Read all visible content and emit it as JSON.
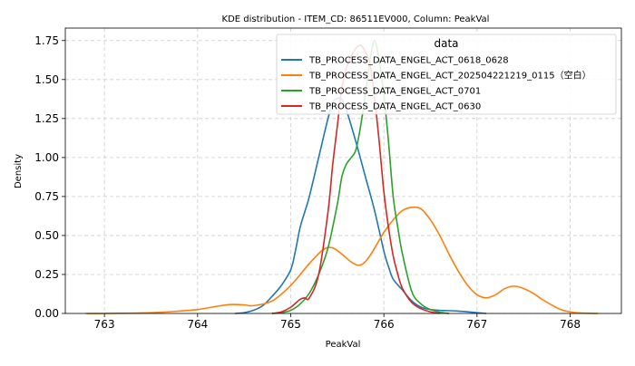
{
  "chart_data": {
    "type": "line",
    "title": "KDE distribution - ITEM_CD: 86511EV000, Column: PeakVal",
    "xlabel": "PeakVal",
    "ylabel": "Density",
    "xlim": [
      762.58,
      768.55
    ],
    "ylim": [
      0,
      1.83
    ],
    "xticks": [
      763,
      764,
      765,
      766,
      767,
      768
    ],
    "yticks": [
      0.0,
      0.25,
      0.5,
      0.75,
      1.0,
      1.25,
      1.5,
      1.75
    ],
    "ytick_labels": [
      "0.00",
      "0.25",
      "0.50",
      "0.75",
      "1.00",
      "1.25",
      "1.50",
      "1.75"
    ],
    "grid": true,
    "legend": {
      "title": "data",
      "placement": "top-right"
    },
    "series": [
      {
        "name": "TB_PROCESS_DATA_ENGEL_ACT_0618_0628",
        "color": "#1f77b4",
        "x": [
          764.4,
          764.5,
          764.6,
          764.7,
          764.8,
          764.9,
          765.0,
          765.05,
          765.1,
          765.15,
          765.2,
          765.3,
          765.4,
          765.45,
          765.5,
          765.55,
          765.6,
          765.7,
          765.8,
          765.9,
          766.0,
          766.05,
          766.1,
          766.2,
          766.3,
          766.4,
          766.5,
          766.6,
          766.8,
          767.0,
          767.1
        ],
        "y": [
          0.0,
          0.005,
          0.02,
          0.05,
          0.11,
          0.18,
          0.28,
          0.4,
          0.55,
          0.65,
          0.75,
          1.0,
          1.25,
          1.35,
          1.38,
          1.37,
          1.3,
          1.1,
          0.88,
          0.66,
          0.4,
          0.3,
          0.22,
          0.15,
          0.08,
          0.04,
          0.025,
          0.02,
          0.015,
          0.005,
          0.0
        ]
      },
      {
        "name": "TB_PROCESS_DATA_ENGEL_ACT_202504221219_0115（空白）",
        "color": "#ff7f0e",
        "x": [
          762.8,
          763.0,
          763.5,
          763.8,
          764.0,
          764.2,
          764.35,
          764.5,
          764.6,
          764.8,
          765.0,
          765.2,
          765.35,
          765.45,
          765.55,
          765.65,
          765.75,
          765.85,
          766.0,
          766.1,
          766.2,
          766.3,
          766.4,
          766.5,
          766.6,
          766.7,
          766.8,
          766.9,
          767.0,
          767.1,
          767.2,
          767.3,
          767.4,
          767.5,
          767.6,
          767.7,
          767.8,
          767.9,
          768.0,
          768.1,
          768.3
        ],
        "y": [
          0.0,
          0.0,
          0.005,
          0.015,
          0.025,
          0.045,
          0.057,
          0.055,
          0.05,
          0.08,
          0.18,
          0.32,
          0.41,
          0.42,
          0.38,
          0.33,
          0.31,
          0.37,
          0.52,
          0.6,
          0.66,
          0.68,
          0.67,
          0.6,
          0.5,
          0.38,
          0.27,
          0.18,
          0.12,
          0.1,
          0.12,
          0.16,
          0.175,
          0.16,
          0.13,
          0.09,
          0.055,
          0.025,
          0.01,
          0.003,
          0.0
        ]
      },
      {
        "name": "TB_PROCESS_DATA_ENGEL_ACT_0701",
        "color": "#2ca02c",
        "x": [
          764.8,
          764.9,
          765.0,
          765.1,
          765.2,
          765.3,
          765.4,
          765.5,
          765.55,
          765.6,
          765.65,
          765.7,
          765.75,
          765.8,
          765.85,
          765.9,
          765.95,
          766.0,
          766.05,
          766.1,
          766.15,
          766.2,
          766.3,
          766.4,
          766.5,
          766.6,
          766.7
        ],
        "y": [
          0.0,
          0.005,
          0.02,
          0.06,
          0.13,
          0.25,
          0.42,
          0.7,
          0.88,
          0.96,
          1.0,
          1.05,
          1.2,
          1.4,
          1.62,
          1.75,
          1.62,
          1.4,
          1.1,
          0.75,
          0.55,
          0.38,
          0.14,
          0.06,
          0.025,
          0.008,
          0.0
        ]
      },
      {
        "name": "TB_PROCESS_DATA_ENGEL_ACT_0630",
        "color": "#d62728",
        "x": [
          764.8,
          764.9,
          765.0,
          765.1,
          765.15,
          765.2,
          765.3,
          765.4,
          765.45,
          765.5,
          765.55,
          765.6,
          765.65,
          765.7,
          765.75,
          765.8,
          765.85,
          765.9,
          765.95,
          766.0,
          766.05,
          766.1,
          766.15,
          766.2,
          766.3,
          766.4,
          766.5,
          766.6
        ],
        "y": [
          0.0,
          0.01,
          0.04,
          0.09,
          0.1,
          0.1,
          0.25,
          0.65,
          0.95,
          1.2,
          1.45,
          1.58,
          1.65,
          1.7,
          1.72,
          1.68,
          1.6,
          1.38,
          1.1,
          0.78,
          0.55,
          0.37,
          0.25,
          0.16,
          0.07,
          0.03,
          0.01,
          0.0
        ]
      }
    ]
  }
}
